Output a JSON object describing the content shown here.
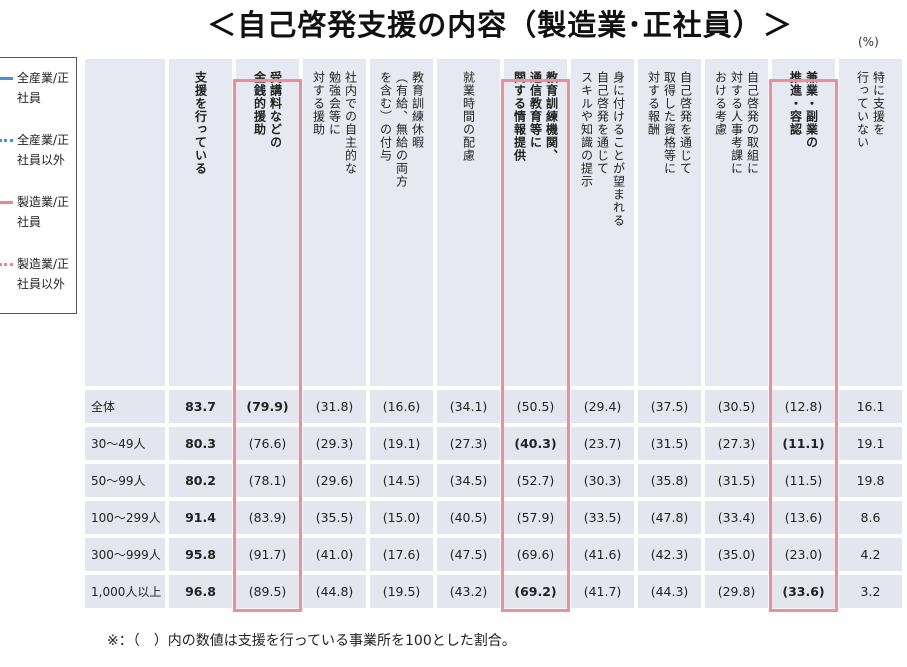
{
  "title": "＜自己啓発支援の内容（製造業･正社員）＞",
  "unit": "(%)",
  "legend": [
    {
      "label": "全産業/正社員",
      "color": "#4a90d9",
      "style": "solid"
    },
    {
      "label": "全産業/正社員以外",
      "color": "#4a90d9",
      "style": "dotted"
    },
    {
      "label": "製造業/正社員",
      "color": "#e8868f",
      "style": "solid"
    },
    {
      "label": "製造業/正社員以外",
      "color": "#e8868f",
      "style": "dotted"
    }
  ],
  "chart_data": {
    "type": "table",
    "columns": [
      {
        "label": "支援を行っている",
        "bold": true
      },
      {
        "label": "受講料などの\n金銭的援助",
        "bold": true,
        "highlight": true
      },
      {
        "label": "社内での自主的な\n勉強会等に\n対する援助",
        "bold": false
      },
      {
        "label": "教育訓練休暇\n（有給、無給の両方\nを含む）の付与",
        "bold": false
      },
      {
        "label": "就業時間の配慮",
        "bold": false
      },
      {
        "label": "教育訓練機関、\n通信教育等に\n関する情報提供",
        "bold": true,
        "highlight": true
      },
      {
        "label": "身に付けることが望まれる\n自己啓発を通じて\nスキルや知識の提示",
        "bold": false
      },
      {
        "label": "自己啓発を通じて\n取得した資格等に\n対する報酬",
        "bold": false
      },
      {
        "label": "自己啓発の取組に\n対する人事考課に\nおける考慮",
        "bold": false
      },
      {
        "label": "兼業・副業の\n推進・容認",
        "bold": true,
        "highlight": true
      },
      {
        "label": "特に支援を\n行っていない",
        "bold": false
      }
    ],
    "rows": [
      {
        "label": "全体",
        "values": [
          "83.7",
          "(79.9)",
          "(31.8)",
          "(16.6)",
          "(34.1)",
          "(50.5)",
          "(29.4)",
          "(37.5)",
          "(30.5)",
          "(12.8)",
          "16.1"
        ],
        "bold": [
          true,
          true,
          false,
          false,
          false,
          false,
          false,
          false,
          false,
          false,
          false
        ]
      },
      {
        "label": "30～49人",
        "values": [
          "80.3",
          "(76.6)",
          "(29.3)",
          "(19.1)",
          "(27.3)",
          "(40.3)",
          "(23.7)",
          "(31.5)",
          "(27.3)",
          "(11.1)",
          "19.1"
        ],
        "bold": [
          true,
          false,
          false,
          false,
          false,
          true,
          false,
          false,
          false,
          true,
          false
        ]
      },
      {
        "label": "50～99人",
        "values": [
          "80.2",
          "(78.1)",
          "(29.6)",
          "(14.5)",
          "(34.5)",
          "(52.7)",
          "(30.3)",
          "(35.8)",
          "(31.5)",
          "(11.5)",
          "19.8"
        ],
        "bold": [
          true,
          false,
          false,
          false,
          false,
          false,
          false,
          false,
          false,
          false,
          false
        ]
      },
      {
        "label": "100～299人",
        "values": [
          "91.4",
          "(83.9)",
          "(35.5)",
          "(15.0)",
          "(40.5)",
          "(57.9)",
          "(33.5)",
          "(47.8)",
          "(33.4)",
          "(13.6)",
          "8.6"
        ],
        "bold": [
          true,
          false,
          false,
          false,
          false,
          false,
          false,
          false,
          false,
          false,
          false
        ]
      },
      {
        "label": "300～999人",
        "values": [
          "95.8",
          "(91.7)",
          "(41.0)",
          "(17.6)",
          "(47.5)",
          "(69.6)",
          "(41.6)",
          "(42.3)",
          "(35.0)",
          "(23.0)",
          "4.2"
        ],
        "bold": [
          true,
          false,
          false,
          false,
          false,
          false,
          false,
          false,
          false,
          false,
          false
        ]
      },
      {
        "label": "1,000人以上",
        "values": [
          "96.8",
          "(89.5)",
          "(44.8)",
          "(19.5)",
          "(43.2)",
          "(69.2)",
          "(41.7)",
          "(44.3)",
          "(29.8)",
          "(33.6)",
          "3.2"
        ],
        "bold": [
          true,
          false,
          false,
          false,
          false,
          true,
          false,
          false,
          false,
          true,
          false
        ]
      }
    ]
  },
  "footnote": "※：（　）内の数値は支援を行っている事業所を100とした割合。",
  "colors": {
    "highlight_border": "#ec8f98",
    "cell_bg": "#e3e6ee"
  }
}
